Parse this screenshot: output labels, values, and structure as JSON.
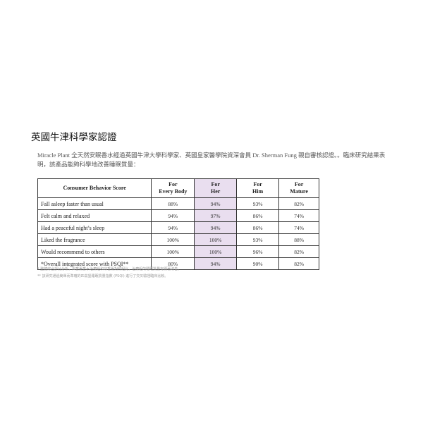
{
  "title": "英國牛津科學家認證",
  "intro": "Miracle Plant 全天然安眠香水經過英國牛津大學科學家、英國皇家醫學院資深會員 Dr. Sherman Fung 親自審核認證。。臨床研究結果表明，該產品能夠科學地改善睡眠質量：",
  "table": {
    "headers": [
      "Consumer Behavior Score",
      "For\nEvery Body",
      "For\nHer",
      "For\nHim",
      "For\nMature"
    ],
    "highlight_color": "#e9deef",
    "rows": [
      [
        "Fall asleep faster than usual",
        "88%",
        "94%",
        "93%",
        "82%"
      ],
      [
        "Felt calm and relaxed",
        "94%",
        "97%",
        "86%",
        "74%"
      ],
      [
        "Had a peaceful night’s sleep",
        "94%",
        "94%",
        "86%",
        "74%"
      ],
      [
        "Liked the fragrance",
        "100%",
        "100%",
        "93%",
        "88%"
      ],
      [
        "Would recommend to others",
        "100%",
        "100%",
        "96%",
        "82%"
      ],
      [
        "*Overall integrated score with PSQI**",
        "80%",
        "94%",
        "90%",
        "82%"
      ]
    ]
  },
  "notes": [
    "* 整體綜合評分分析，與香薰香水治療組和非香薰對照組比，治療組的睡眠質量有顯著改善。",
    "** 該研究通過簡單而準確的匹茲堡睡眠質量指數 (PSQI) 進行了交叉驗證臨床比較。"
  ]
}
